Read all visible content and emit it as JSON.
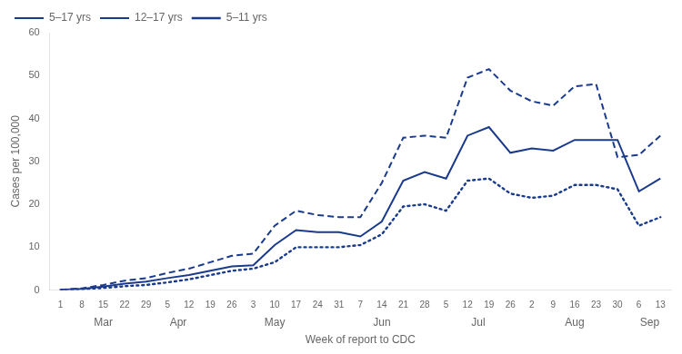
{
  "chart_data": {
    "type": "line",
    "xlabel": "Week of report to CDC",
    "ylabel": "Cases per 100,000",
    "categories": [
      "1",
      "8",
      "15",
      "22",
      "29",
      "5",
      "12",
      "19",
      "26",
      "3",
      "10",
      "17",
      "24",
      "31",
      "7",
      "14",
      "21",
      "28",
      "5",
      "12",
      "19",
      "26",
      "2",
      "9",
      "16",
      "23",
      "30",
      "6",
      "13"
    ],
    "series": [
      {
        "name": "5–17 yrs",
        "color": "#1a3a8c",
        "line_style": "solid",
        "values": [
          0.1,
          0.3,
          0.8,
          1.5,
          2.0,
          2.8,
          3.5,
          4.5,
          5.5,
          5.8,
          10.5,
          14.0,
          13.5,
          13.5,
          12.5,
          16.0,
          25.5,
          27.5,
          26.0,
          36.0,
          38.0,
          32.0,
          33.0,
          32.5,
          35.0,
          35.0,
          35.0,
          23.0,
          26.0
        ]
      },
      {
        "name": "12–17 yrs",
        "color": "#1a3a8c",
        "line_style": "dashed",
        "values": [
          0.1,
          0.4,
          1.2,
          2.2,
          2.8,
          4.0,
          5.0,
          6.5,
          8.0,
          8.5,
          15.0,
          18.5,
          17.5,
          17.0,
          17.0,
          25.0,
          35.5,
          36.0,
          35.5,
          49.5,
          51.5,
          46.5,
          44.0,
          43.0,
          47.5,
          48.0,
          31.0,
          31.5,
          36.0
        ]
      },
      {
        "name": "5–11 yrs",
        "color": "#1a3a8c",
        "line_style": "dotted",
        "values": [
          0.05,
          0.2,
          0.5,
          0.9,
          1.2,
          1.8,
          2.5,
          3.5,
          4.5,
          5.0,
          6.5,
          10.0,
          10.0,
          10.0,
          10.5,
          13.0,
          19.5,
          20.0,
          18.5,
          25.5,
          26.0,
          22.5,
          21.5,
          22.0,
          24.5,
          24.5,
          23.5,
          15.0,
          17.0
        ]
      }
    ],
    "ylim": [
      0,
      60
    ],
    "yticks": [
      0,
      10,
      20,
      30,
      40,
      50,
      60
    ],
    "grid": false,
    "legend": "upper left",
    "annotations": [
      {
        "text": "Mar",
        "x": 2.0
      },
      {
        "text": "Apr",
        "x": 5.5
      },
      {
        "text": "May",
        "x": 10.0
      },
      {
        "text": "Jun",
        "x": 15.0
      },
      {
        "text": "Jul",
        "x": 19.5
      },
      {
        "text": "Aug",
        "x": 24.0
      },
      {
        "text": "Sep",
        "x": 27.5
      }
    ]
  }
}
